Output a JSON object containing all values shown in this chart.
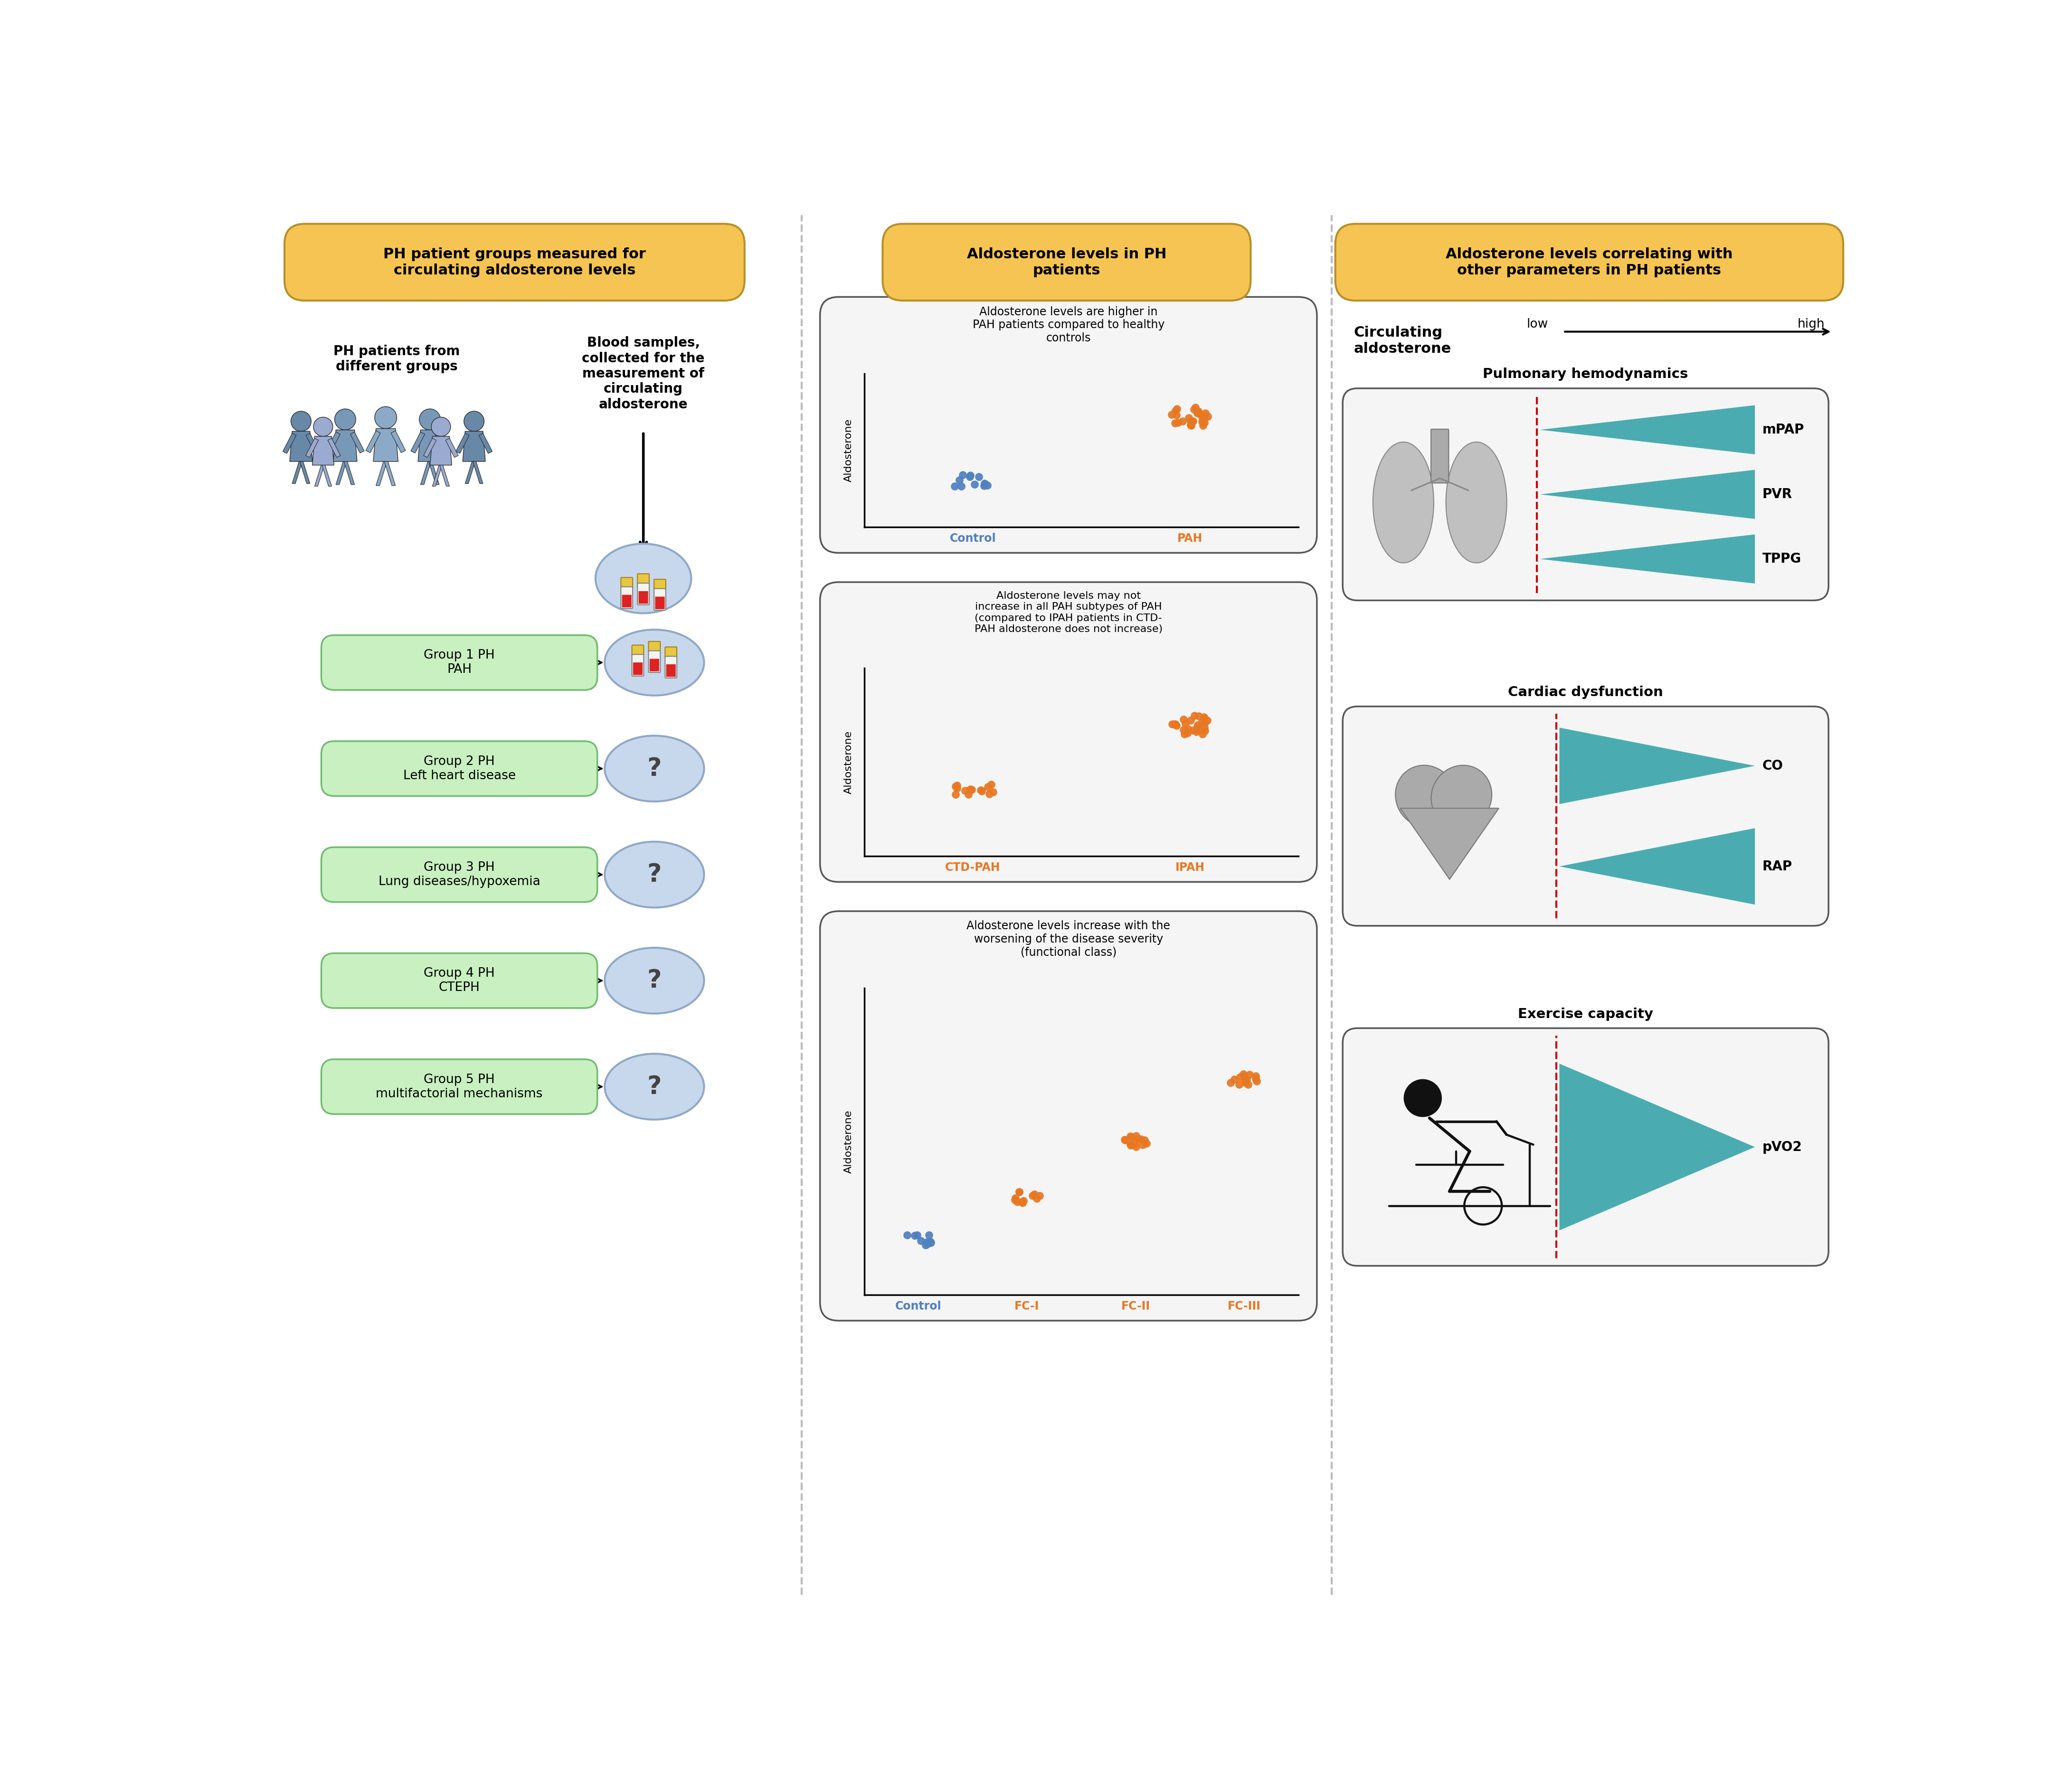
{
  "bg_color": "#ffffff",
  "amber_color": "#F5C452",
  "amber_border": "#B8902A",
  "green_box_color": "#C8F0C0",
  "green_box_border": "#70BB70",
  "blue_circle_color": "#C8D8EC",
  "blue_circle_border": "#90A8C8",
  "teal_triangle_color": "#4AACB0",
  "orange_dot_color": "#E87722",
  "blue_dot_color": "#5080C0",
  "dashed_line_color": "#bbbbbb",
  "red_dashed_color": "#cc0000",
  "panel1_title": "PH patient groups measured for\ncirculating aldosterone levels",
  "panel2_title": "Aldosterone levels in PH\npatients",
  "panel3_title": "Aldosterone levels correlating with\nother parameters in PH patients",
  "left_col_label1": "PH patients from\ndifferent groups",
  "left_col_label2": "Blood samples,\ncollected for the\nmeasurement of\ncirculating\naldosterone",
  "groups": [
    "Group 1 PH\nPAH",
    "Group 2 PH\nLeft heart disease",
    "Group 3 PH\nLung diseases/hypoxemia",
    "Group 4 PH\nCTEPH",
    "Group 5 PH\nmultifactorial mechanisms"
  ],
  "plot1_title": "Aldosterone levels are higher in\nPAH patients compared to healthy\ncontrols",
  "plot1_xlabel_left": "Control",
  "plot1_xlabel_right": "PAH",
  "plot2_title": "Aldosterone levels may not\nincrease in all PAH subtypes of PAH\n(compared to IPAH patients in CTD-\nPAH aldosterone does not increase)",
  "plot2_xlabel_left": "CTD-PAH",
  "plot2_xlabel_right": "IPAH",
  "plot3_title": "Aldosterone levels increase with the\nworsening of the disease severity\n(functional class)",
  "plot3_xlabels": [
    "Control",
    "FC-I",
    "FC-II",
    "FC-III"
  ],
  "section3_circ_label": "Circulating\naldosterone",
  "section3_arrow_label_left": "low",
  "section3_arrow_label_right": "high",
  "section3_pulm_title": "Pulmonary hemodynamics",
  "section3_cardiac_title": "Cardiac dysfunction",
  "section3_exercise_title": "Exercise capacity",
  "pulm_params": [
    "mPAP",
    "PVR",
    "TPPG"
  ],
  "cardiac_params": [
    "CO",
    "RAP"
  ],
  "exercise_params": [
    "pVO2"
  ],
  "pulm_directions": [
    1,
    1,
    1
  ],
  "cardiac_directions": [
    -1,
    1
  ],
  "exercise_directions": [
    -1
  ]
}
